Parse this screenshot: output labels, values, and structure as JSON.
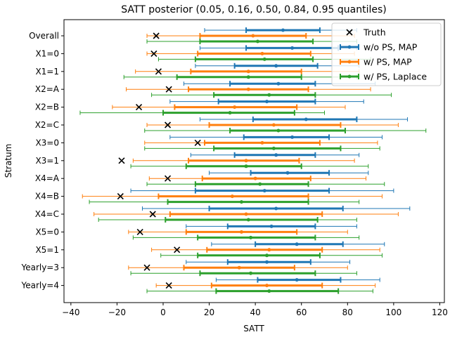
{
  "chart_data": {
    "type": "errorbar",
    "title": "SATT posterior (0.05, 0.16, 0.50, 0.84, 0.95 quantiles)",
    "xlabel": "SATT",
    "ylabel": "Stratum",
    "xlim": [
      -43,
      122
    ],
    "xticks": [
      -40,
      -20,
      0,
      20,
      40,
      60,
      80,
      100,
      120
    ],
    "legend_position": "top-right",
    "categories": [
      "Overall",
      "X1=0",
      "X1=1",
      "X2=A",
      "X2=B",
      "X2=C",
      "X3=0",
      "X3=1",
      "X4=A",
      "X4=B",
      "X4=C",
      "X5=0",
      "X5=1",
      "Yearly=3",
      "Yearly=4"
    ],
    "truth": {
      "name": "Truth",
      "color": "#000000",
      "values": [
        -3,
        -4,
        -2,
        2.5,
        -10.5,
        2,
        15,
        -18,
        2,
        -18.5,
        -4.5,
        -10,
        6,
        -7,
        2.5
      ]
    },
    "series": [
      {
        "name": "w/o PS, MAP",
        "color": "#1f77b4",
        "q05": [
          18,
          16,
          14,
          9,
          3,
          16,
          3,
          12,
          20,
          -14,
          -9,
          10,
          21,
          10,
          23
        ],
        "q16": [
          36,
          36,
          31,
          29,
          24,
          39,
          35,
          31,
          38,
          14,
          20,
          28,
          40,
          28,
          41
        ],
        "q50": [
          52,
          56,
          49,
          50,
          45,
          62,
          56,
          49,
          54,
          44,
          49,
          47,
          58,
          45,
          58
        ],
        "q84": [
          68,
          76,
          67,
          66,
          66,
          84,
          72,
          66,
          72,
          72,
          78,
          66,
          78,
          64,
          77
        ],
        "q95": [
          84,
          84,
          85,
          92,
          87,
          106,
          95,
          85,
          89,
          100,
          107,
          84,
          96,
          81,
          94
        ]
      },
      {
        "name": "w/ PS, MAP",
        "color": "#ff7f0e",
        "q05": [
          -7,
          -7,
          -12,
          -16,
          -22,
          -7,
          -8,
          -13,
          -6,
          -35,
          -30,
          -15,
          -5,
          -15,
          -3
        ],
        "q16": [
          16,
          15,
          12,
          11,
          5,
          20,
          18,
          11,
          17,
          -2,
          3,
          10,
          19,
          9,
          21
        ],
        "q50": [
          39,
          43,
          37,
          37,
          31,
          48,
          43,
          36,
          40,
          30,
          36,
          34,
          46,
          33,
          45
        ],
        "q84": [
          62,
          64,
          60,
          63,
          58,
          77,
          68,
          59,
          64,
          63,
          69,
          58,
          69,
          57,
          69
        ],
        "q95": [
          83,
          83,
          85,
          90,
          79,
          102,
          93,
          83,
          88,
          95,
          102,
          80,
          94,
          80,
          92
        ]
      },
      {
        "name": "w/ PS, Laplace",
        "color": "#2ca02c",
        "q05": [
          -7,
          -2,
          -17,
          -5,
          -36,
          -8,
          -8,
          -14,
          -7,
          -32,
          -28,
          -13,
          -1,
          -14,
          -7
        ],
        "q16": [
          16,
          14,
          6,
          22,
          0,
          29,
          22,
          10,
          14,
          2,
          1,
          15,
          15,
          16,
          23
        ],
        "q50": [
          41,
          44,
          37,
          46,
          29,
          50,
          48,
          36,
          42,
          34,
          37,
          38,
          45,
          38,
          46
        ],
        "q84": [
          65,
          65,
          60,
          66,
          57,
          79,
          77,
          60,
          63,
          63,
          67,
          66,
          68,
          66,
          76
        ],
        "q95": [
          84,
          90,
          84,
          99,
          70,
          114,
          94,
          89,
          96,
          85,
          84,
          85,
          95,
          84,
          91
        ]
      }
    ]
  }
}
